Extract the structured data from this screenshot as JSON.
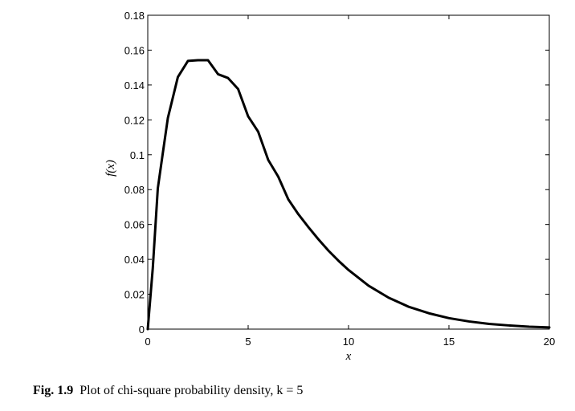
{
  "chart_data": {
    "type": "line",
    "title": "",
    "xlabel": "x",
    "ylabel": "f(x)",
    "xlim": [
      0,
      20
    ],
    "ylim": [
      0,
      0.18
    ],
    "xticks": [
      0,
      5,
      10,
      15,
      20
    ],
    "xtick_labels": [
      "0",
      "5",
      "10",
      "15",
      "20"
    ],
    "yticks": [
      0,
      0.02,
      0.04,
      0.06,
      0.08,
      0.1,
      0.12,
      0.14,
      0.16,
      0.18
    ],
    "ytick_labels": [
      "0",
      "0.02",
      "0.04",
      "0.06",
      "0.08",
      "0.1",
      "0.12",
      "0.14",
      "0.16",
      "0.18"
    ],
    "grid": false,
    "series": [
      {
        "x": [
          0,
          0.25,
          0.5,
          0.75,
          1,
          1.5,
          2,
          2.5,
          3,
          3.5,
          4,
          4.5,
          5,
          5.5,
          6,
          6.5,
          7,
          7.5,
          8,
          8.5,
          9,
          9.5,
          10,
          11,
          12,
          13,
          14,
          15,
          16,
          17,
          18,
          19,
          20
        ],
        "y": [
          0,
          0.035,
          0.0807,
          0.101,
          0.121,
          0.1446,
          0.1538,
          0.1542,
          0.1542,
          0.1462,
          0.144,
          0.1377,
          0.122,
          0.1132,
          0.097,
          0.0874,
          0.0744,
          0.0659,
          0.0585,
          0.0515,
          0.045,
          0.0392,
          0.0339,
          0.0249,
          0.018,
          0.0128,
          0.0091,
          0.0063,
          0.0044,
          0.003,
          0.0021,
          0.0014,
          0.001
        ]
      }
    ]
  },
  "caption": {
    "fig_label": "Fig. 1.9",
    "text": "Plot of chi-square probability density, k = 5"
  }
}
